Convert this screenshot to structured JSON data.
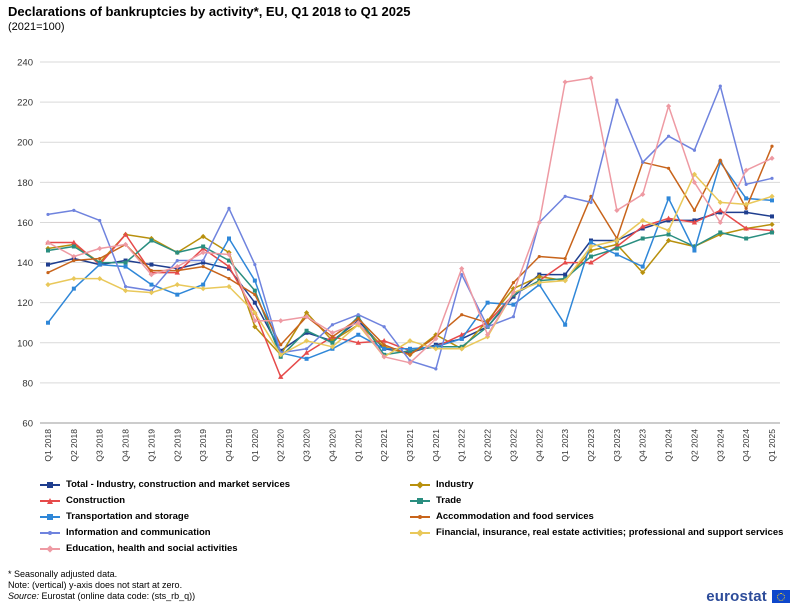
{
  "title": "Declarations of bankruptcies by activity*, EU, Q1 2018 to Q1 2025",
  "subtitle": "(2021=100)",
  "chart_data": {
    "type": "line",
    "ylim": [
      60,
      240
    ],
    "yticks": [
      60,
      80,
      100,
      120,
      140,
      160,
      180,
      200,
      220,
      240
    ],
    "grid": "horizontal",
    "legend_position": "bottom",
    "categories": [
      "Q1 2018",
      "Q2 2018",
      "Q3 2018",
      "Q4 2018",
      "Q1 2019",
      "Q2 2019",
      "Q3 2019",
      "Q4 2019",
      "Q1 2020",
      "Q2 2020",
      "Q3 2020",
      "Q4 2020",
      "Q1 2021",
      "Q2 2021",
      "Q3 2021",
      "Q4 2021",
      "Q1 2022",
      "Q2 2022",
      "Q3 2022",
      "Q4 2022",
      "Q1 2023",
      "Q2 2023",
      "Q3 2023",
      "Q4 2023",
      "Q1 2024",
      "Q2 2024",
      "Q3 2024",
      "Q4 2024",
      "Q1 2025"
    ],
    "series": [
      {
        "name": "Total - Industry, construction and market services",
        "color": "#1f3e8f",
        "marker": "square",
        "values": [
          139,
          142,
          139,
          141,
          139,
          137,
          140,
          137,
          120,
          96,
          105,
          101,
          111,
          97,
          95,
          99,
          102,
          108,
          123,
          134,
          134,
          151,
          151,
          157,
          161,
          161,
          165,
          165,
          163
        ]
      },
      {
        "name": "Industry",
        "color": "#b8900d",
        "marker": "diamond",
        "values": [
          147,
          149,
          140,
          154,
          152,
          145,
          153,
          145,
          108,
          94,
          115,
          101,
          109,
          98,
          94,
          104,
          97,
          111,
          127,
          133,
          131,
          146,
          149,
          135,
          151,
          148,
          154,
          157,
          159
        ]
      },
      {
        "name": "Construction",
        "color": "#e64a4a",
        "marker": "triangle",
        "values": [
          150,
          150,
          139,
          154,
          135,
          135,
          147,
          138,
          115,
          83,
          95,
          103,
          100,
          101,
          96,
          98,
          104,
          110,
          124,
          131,
          140,
          140,
          148,
          158,
          162,
          160,
          166,
          157,
          156
        ]
      },
      {
        "name": "Trade",
        "color": "#2a8e80",
        "marker": "square",
        "values": [
          146,
          148,
          140,
          140,
          151,
          145,
          148,
          141,
          126,
          93,
          106,
          100,
          113,
          94,
          96,
          98,
          98,
          108,
          124,
          131,
          132,
          143,
          147,
          152,
          154,
          148,
          155,
          152,
          155
        ]
      },
      {
        "name": "Transportation and storage",
        "color": "#2f87d8",
        "marker": "square",
        "values": [
          110,
          127,
          139,
          138,
          129,
          124,
          129,
          152,
          131,
          95,
          92,
          97,
          104,
          97,
          97,
          98,
          102,
          120,
          119,
          129,
          109,
          150,
          144,
          138,
          172,
          146,
          190,
          172,
          171
        ]
      },
      {
        "name": "Accommodation and food services",
        "color": "#c8641b",
        "marker": "none",
        "values": [
          135,
          141,
          142,
          149,
          136,
          136,
          138,
          132,
          124,
          99,
          113,
          103,
          112,
          99,
          94,
          103,
          114,
          110,
          130,
          143,
          142,
          173,
          152,
          190,
          187,
          166,
          191,
          167,
          198
        ]
      },
      {
        "name": "Information and communication",
        "color": "#6f83de",
        "marker": "none",
        "values": [
          164,
          166,
          161,
          128,
          126,
          141,
          141,
          167,
          139,
          95,
          97,
          109,
          114,
          108,
          91,
          87,
          134,
          108,
          113,
          160,
          173,
          170,
          221,
          190,
          203,
          196,
          228,
          179,
          182
        ]
      },
      {
        "name": "Financial, insurance, real estate activities; professional and support services",
        "color": "#e9c85a",
        "marker": "diamond",
        "values": [
          129,
          132,
          132,
          126,
          125,
          129,
          127,
          128,
          115,
          94,
          101,
          98,
          109,
          93,
          101,
          97,
          97,
          103,
          125,
          130,
          131,
          148,
          151,
          161,
          156,
          184,
          170,
          169,
          173
        ]
      },
      {
        "name": "Education,  health and social activities",
        "color": "#ee9aa3",
        "marker": "diamond",
        "values": [
          150,
          143,
          147,
          149,
          134,
          138,
          145,
          144,
          111,
          111,
          113,
          105,
          110,
          93,
          90,
          102,
          137,
          104,
          125,
          160,
          230,
          232,
          166,
          174,
          218,
          180,
          160,
          186,
          192
        ]
      }
    ]
  },
  "notes": {
    "seasonal": "* Seasonally adjusted data.",
    "axis": "Note: (vertical) y-axis does not start at zero.",
    "source_label": "Source:",
    "source_text": " Eurostat (online data code: (sts_rb_q))"
  },
  "logo": {
    "text": "eurostat"
  }
}
